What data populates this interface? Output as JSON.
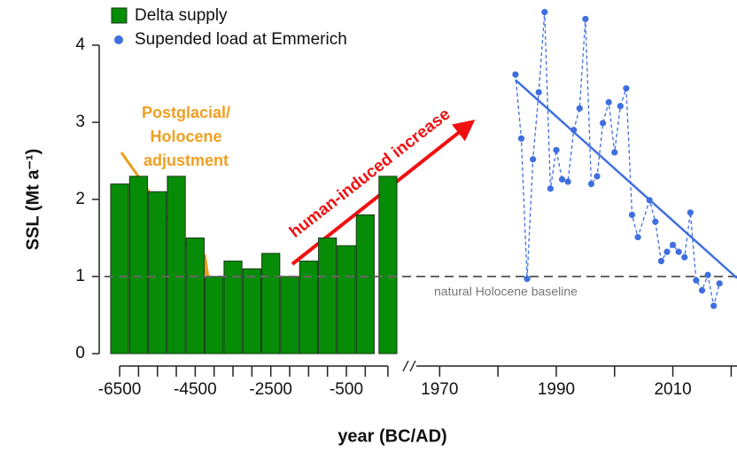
{
  "chart_data": [
    {
      "type": "bar",
      "name": "Delta supply",
      "color": "#068c06",
      "x": [
        -6500,
        -6000,
        -5500,
        -5000,
        -4500,
        -4000,
        -3500,
        -3000,
        -2500,
        -2000,
        -1500,
        -1000,
        -500,
        0,
        600
      ],
      "values": [
        2.2,
        2.3,
        2.1,
        2.3,
        1.5,
        1.0,
        1.2,
        1.1,
        1.3,
        1.0,
        1.2,
        1.5,
        1.4,
        1.8,
        2.3
      ],
      "xlim": [
        -6900,
        1000
      ],
      "xticks": [
        -6500,
        -4500,
        -2500,
        -500
      ],
      "ylim": [
        -0.1,
        4.5
      ],
      "yticks": [
        0,
        1,
        2,
        3,
        4
      ],
      "ylabel": "SSL (Mt a⁻¹)",
      "xlabel": "year (BC/AD)",
      "annotation_lines": [
        "Postglacial/",
        "Holocene",
        "adjustment"
      ],
      "annotation_color": "#f0a020",
      "annotation2": "human-induced increase",
      "annotation2_color": "#f01010"
    },
    {
      "type": "line",
      "name": "Supended load at Emmerich",
      "color": "#3f6fdf",
      "x": [
        1983,
        1984,
        1985,
        1986,
        1987,
        1988,
        1989,
        1990,
        1991,
        1992,
        1993,
        1994,
        1995,
        1996,
        1997,
        1998,
        1999,
        2000,
        2001,
        2002,
        2003,
        2004,
        2006,
        2007,
        2008,
        2009,
        2010,
        2011,
        2012,
        2013,
        2014,
        2015,
        2016,
        2017,
        2018
      ],
      "values": [
        3.62,
        2.79,
        0.97,
        2.52,
        3.39,
        4.43,
        2.14,
        2.64,
        2.26,
        2.23,
        2.9,
        3.18,
        4.34,
        2.2,
        2.3,
        2.99,
        3.26,
        2.61,
        3.21,
        3.44,
        1.8,
        1.51,
        1.99,
        1.71,
        1.2,
        1.32,
        1.41,
        1.32,
        1.25,
        1.83,
        0.95,
        0.82,
        1.02,
        0.62,
        0.91
      ],
      "trend": {
        "x": [
          1983,
          2021
        ],
        "values": [
          3.55,
          0.98
        ]
      },
      "xlim": [
        1966,
        2021
      ],
      "xticks": [
        1970,
        1990,
        2010
      ],
      "xminor": [
        1980,
        2000,
        2020
      ],
      "ylim": [
        -0.1,
        4.5
      ],
      "baseline": 1,
      "baseline_label": "natural Holocene baseline"
    }
  ]
}
